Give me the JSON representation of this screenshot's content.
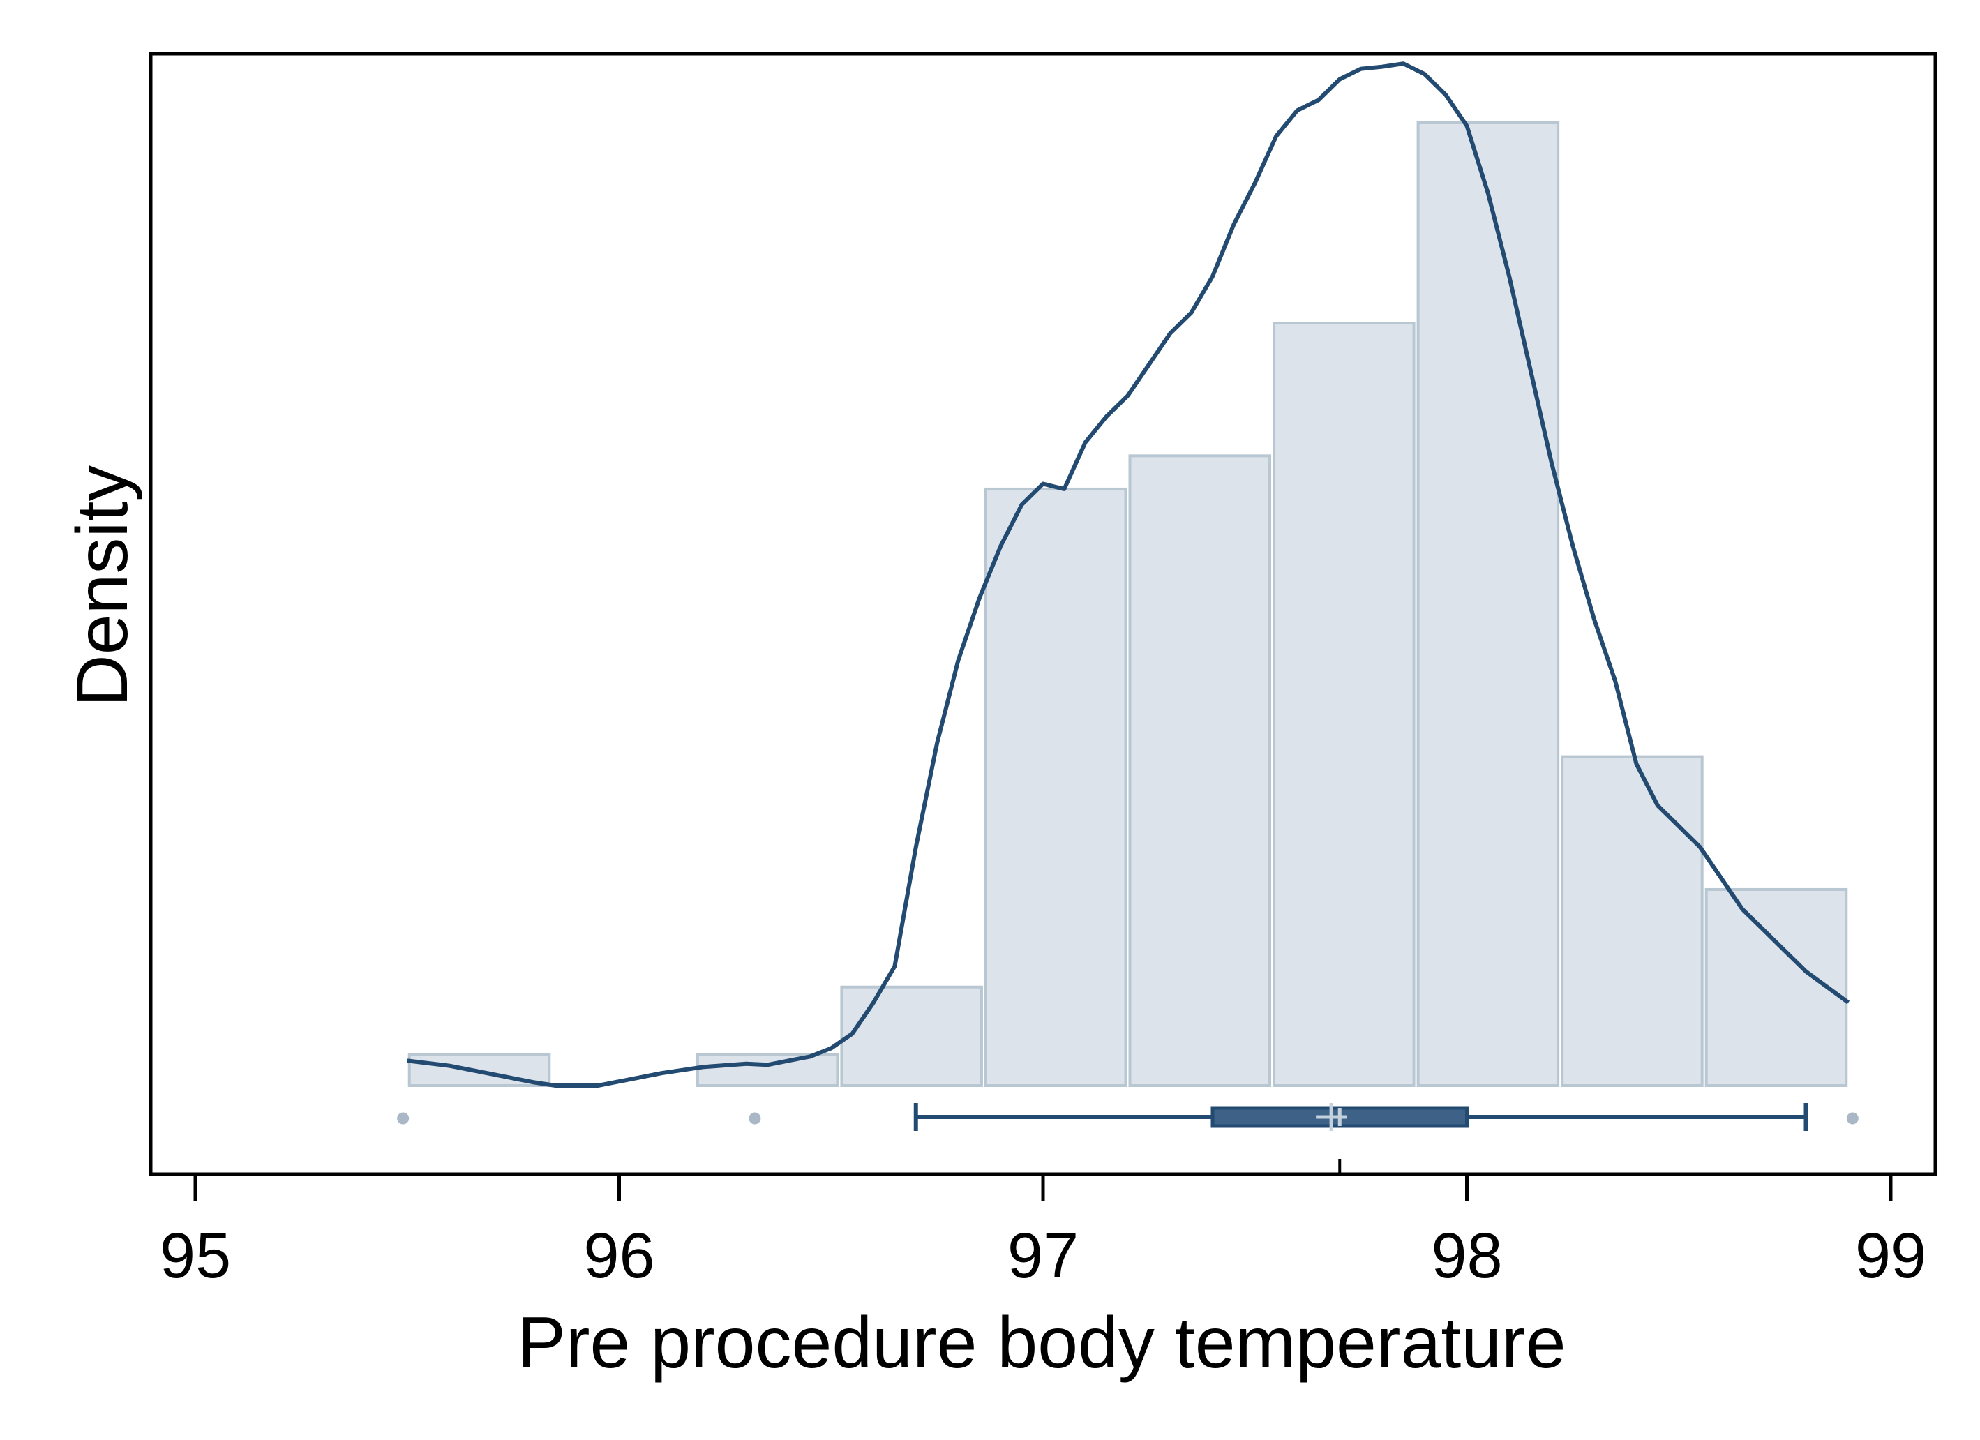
{
  "chart_data": {
    "type": "bar",
    "subtype": "histogram with kernel density and box plot",
    "xlabel": "Pre procedure body temperature",
    "ylabel": "Density",
    "xlim": [
      94.9,
      99.1
    ],
    "ylim": [
      -0.08,
      1.0
    ],
    "y_tick_labels_shown": false,
    "grid": false,
    "legend": "none",
    "x_ticks": [
      95,
      96,
      97,
      98,
      99
    ],
    "histogram": {
      "bins": [
        {
          "x0": 95.5,
          "x1": 95.84,
          "density": 0.03
        },
        {
          "x0": 95.84,
          "x1": 96.18,
          "density": 0.0
        },
        {
          "x0": 96.18,
          "x1": 96.52,
          "density": 0.03
        },
        {
          "x0": 96.52,
          "x1": 96.86,
          "density": 0.095
        },
        {
          "x0": 96.86,
          "x1": 97.2,
          "density": 0.575
        },
        {
          "x0": 97.2,
          "x1": 97.54,
          "density": 0.607
        },
        {
          "x0": 97.54,
          "x1": 97.88,
          "density": 0.735
        },
        {
          "x0": 97.88,
          "x1": 98.22,
          "density": 0.928
        },
        {
          "x0": 98.22,
          "x1": 98.56,
          "density": 0.317
        },
        {
          "x0": 98.56,
          "x1": 98.9,
          "density": 0.189
        }
      ]
    },
    "density_curve": {
      "x": [
        95.5,
        95.6,
        95.7,
        95.8,
        95.85,
        95.9,
        95.95,
        96.0,
        96.1,
        96.2,
        96.3,
        96.35,
        96.4,
        96.45,
        96.5,
        96.55,
        96.6,
        96.65,
        96.7,
        96.75,
        96.8,
        96.85,
        96.9,
        96.95,
        97.0,
        97.05,
        97.1,
        97.15,
        97.2,
        97.25,
        97.3,
        97.35,
        97.4,
        97.45,
        97.5,
        97.55,
        97.6,
        97.65,
        97.7,
        97.75,
        97.8,
        97.85,
        97.9,
        97.95,
        98.0,
        98.05,
        98.1,
        98.15,
        98.2,
        98.25,
        98.3,
        98.35,
        98.4,
        98.45,
        98.5,
        98.55,
        98.6,
        98.65,
        98.7,
        98.75,
        98.8,
        98.85,
        98.9
      ],
      "y": [
        0.024,
        0.019,
        0.011,
        0.003,
        0.0,
        0.0,
        0.0,
        0.004,
        0.012,
        0.018,
        0.021,
        0.02,
        0.024,
        0.028,
        0.036,
        0.05,
        0.08,
        0.115,
        0.23,
        0.33,
        0.41,
        0.47,
        0.52,
        0.56,
        0.58,
        0.575,
        0.62,
        0.645,
        0.665,
        0.695,
        0.725,
        0.745,
        0.78,
        0.83,
        0.87,
        0.915,
        0.94,
        0.95,
        0.97,
        0.98,
        0.982,
        0.985,
        0.975,
        0.955,
        0.925,
        0.86,
        0.78,
        0.69,
        0.6,
        0.52,
        0.45,
        0.39,
        0.31,
        0.27,
        0.25,
        0.23,
        0.2,
        0.17,
        0.15,
        0.13,
        0.11,
        0.095,
        0.08
      ]
    },
    "box_plot": {
      "min": 96.7,
      "q1": 97.4,
      "median": 97.7,
      "q3": 98.0,
      "max": 98.8,
      "mean": 97.68,
      "outliers": [
        95.49,
        96.32,
        98.91
      ]
    },
    "colors": {
      "bar_fill": "#dce3eb",
      "bar_stroke": "#b9c7d3",
      "curve": "#234a70",
      "box_fill": "#3e6188",
      "box_stroke": "#234a70",
      "outlier": "#a9b7c6",
      "mean_marker": "#c4d0dc"
    }
  }
}
